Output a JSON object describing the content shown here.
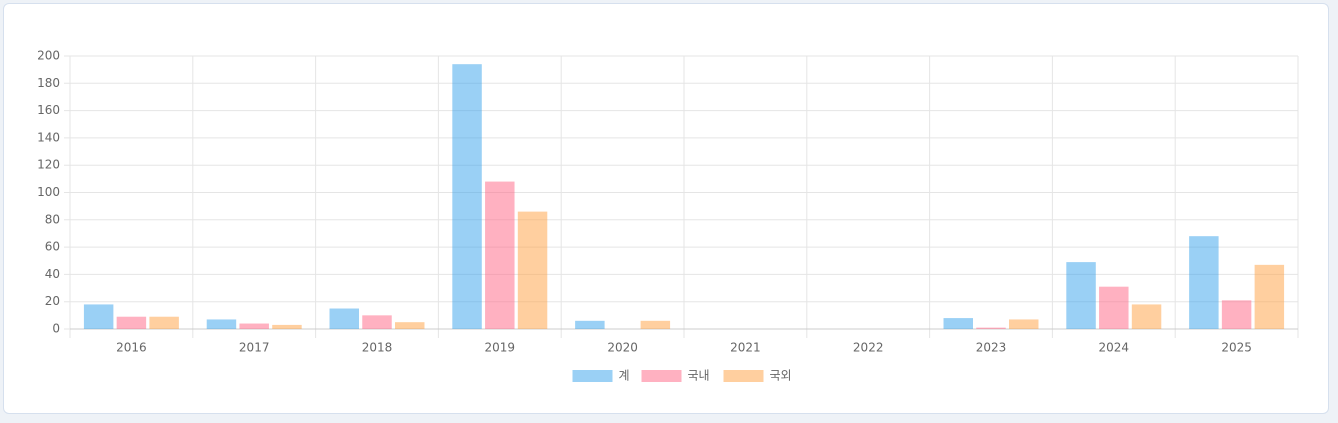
{
  "chart_data": {
    "type": "bar",
    "categories": [
      "2016",
      "2017",
      "2018",
      "2019",
      "2020",
      "2021",
      "2022",
      "2023",
      "2024",
      "2025"
    ],
    "series": [
      {
        "name": "계",
        "color": "#36a2eb",
        "values": [
          18,
          7,
          15,
          194,
          6,
          0,
          0,
          8,
          49,
          68
        ]
      },
      {
        "name": "국내",
        "color": "#ff6384",
        "values": [
          9,
          4,
          10,
          108,
          0,
          0,
          0,
          1,
          31,
          21
        ]
      },
      {
        "name": "국외",
        "color": "#ff9f40",
        "values": [
          9,
          3,
          5,
          86,
          6,
          0,
          0,
          7,
          18,
          47
        ]
      }
    ],
    "ylim": [
      0,
      200
    ],
    "yticks": [
      0,
      20,
      40,
      60,
      80,
      100,
      120,
      140,
      160,
      180,
      200
    ],
    "grid": true,
    "legend": "bottom"
  }
}
